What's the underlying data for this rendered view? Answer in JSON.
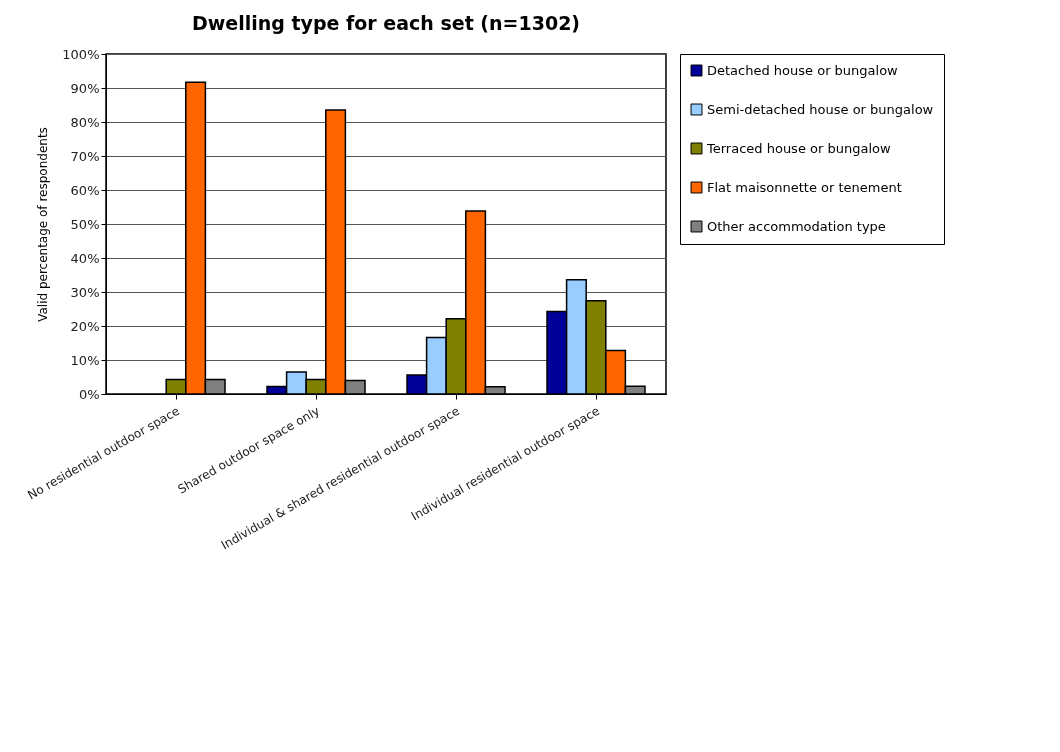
{
  "chart_data": {
    "type": "bar",
    "title": "Dwelling type for each set (n=1302)",
    "ylabel": "Valid percentage of respondents",
    "categories": [
      "No residential outdoor space",
      "Shared outdoor space only",
      "Individual & shared residential outdoor space",
      "Individual residential outdoor space"
    ],
    "series": [
      {
        "name": "Detached house or bungalow",
        "color": "#000099",
        "values": [
          0,
          2.2,
          5.6,
          24.3
        ]
      },
      {
        "name": "Semi-detached house or bungalow",
        "color": "#99ccff",
        "values": [
          0,
          6.5,
          16.6,
          33.6
        ]
      },
      {
        "name": "Terraced house or bungalow",
        "color": "#808000",
        "values": [
          4.3,
          4.3,
          22.1,
          27.4
        ]
      },
      {
        "name": "Flat maisonnette or tenement",
        "color": "#ff6600",
        "values": [
          91.7,
          83.5,
          53.8,
          12.8
        ]
      },
      {
        "name": "Other accommodation type",
        "color": "#808080",
        "values": [
          4.3,
          4.0,
          2.1,
          2.3
        ]
      }
    ],
    "ylim": [
      0,
      100
    ],
    "yticks": [
      {
        "value": 0,
        "label": "0%"
      },
      {
        "value": 10,
        "label": "10%"
      },
      {
        "value": 20,
        "label": "20%"
      },
      {
        "value": 30,
        "label": "30%"
      },
      {
        "value": 40,
        "label": "40%"
      },
      {
        "value": 50,
        "label": "50%"
      },
      {
        "value": 60,
        "label": "60%"
      },
      {
        "value": 70,
        "label": "70%"
      },
      {
        "value": 80,
        "label": "80%"
      },
      {
        "value": 90,
        "label": "90%"
      },
      {
        "value": 100,
        "label": "100%"
      }
    ],
    "grid": "y",
    "legend": "right"
  }
}
